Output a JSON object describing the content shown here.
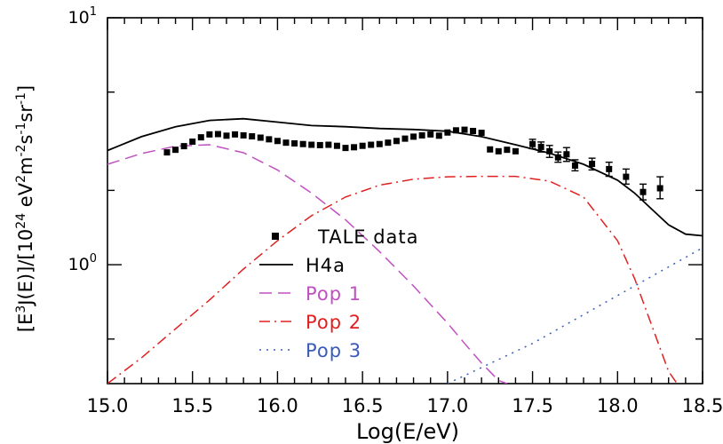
{
  "chart_data": {
    "type": "line",
    "title": "",
    "xlabel": "Log(E/eV)",
    "ylabel": "[E³J(E)]/[10²⁴ eV²m⁻²s⁻¹sr⁻¹]",
    "ylabel_parts": {
      "pre1": "[E",
      "sup1": "3",
      "mid1": "J(E)]/[10",
      "sup2": "24",
      "mid2": " eV",
      "sup3": "2",
      "mid3": "m",
      "sup4": "-2",
      "mid4": "s",
      "sup5": "-1",
      "mid5": "sr",
      "sup6": "-1",
      "post": "]"
    },
    "xlim": [
      15.0,
      18.5
    ],
    "ylim": [
      0.33,
      10
    ],
    "yscale": "log",
    "x_ticks": [
      "15.0",
      "15.5",
      "16.0",
      "16.5",
      "17.0",
      "17.5",
      "18.0",
      "18.5"
    ],
    "y_major_ticks": [
      {
        "value": 1,
        "base": "10",
        "exp": "0"
      },
      {
        "value": 10,
        "base": "10",
        "exp": "1"
      }
    ],
    "y_minor_ticks": [
      0.5,
      2,
      5
    ],
    "grid": false,
    "legend_position": "bottom-center",
    "scatter": {
      "name": "TALE data",
      "color": "#000000",
      "points": [
        {
          "x": 15.35,
          "y": 2.85
        },
        {
          "x": 15.4,
          "y": 2.92
        },
        {
          "x": 15.45,
          "y": 3.02
        },
        {
          "x": 15.5,
          "y": 3.15
        },
        {
          "x": 15.55,
          "y": 3.28
        },
        {
          "x": 15.6,
          "y": 3.37
        },
        {
          "x": 15.65,
          "y": 3.38
        },
        {
          "x": 15.7,
          "y": 3.33
        },
        {
          "x": 15.75,
          "y": 3.37
        },
        {
          "x": 15.8,
          "y": 3.34
        },
        {
          "x": 15.85,
          "y": 3.31
        },
        {
          "x": 15.9,
          "y": 3.27
        },
        {
          "x": 15.95,
          "y": 3.22
        },
        {
          "x": 16.0,
          "y": 3.17
        },
        {
          "x": 16.05,
          "y": 3.12
        },
        {
          "x": 16.1,
          "y": 3.1
        },
        {
          "x": 16.15,
          "y": 3.08
        },
        {
          "x": 16.2,
          "y": 3.06
        },
        {
          "x": 16.25,
          "y": 3.05
        },
        {
          "x": 16.3,
          "y": 3.06
        },
        {
          "x": 16.35,
          "y": 3.03
        },
        {
          "x": 16.4,
          "y": 2.97
        },
        {
          "x": 16.45,
          "y": 2.99
        },
        {
          "x": 16.5,
          "y": 3.03
        },
        {
          "x": 16.55,
          "y": 3.06
        },
        {
          "x": 16.6,
          "y": 3.08
        },
        {
          "x": 16.65,
          "y": 3.12
        },
        {
          "x": 16.7,
          "y": 3.17
        },
        {
          "x": 16.75,
          "y": 3.24
        },
        {
          "x": 16.8,
          "y": 3.3
        },
        {
          "x": 16.85,
          "y": 3.34
        },
        {
          "x": 16.9,
          "y": 3.37
        },
        {
          "x": 16.95,
          "y": 3.33
        },
        {
          "x": 17.0,
          "y": 3.43
        },
        {
          "x": 17.05,
          "y": 3.5
        },
        {
          "x": 17.1,
          "y": 3.52
        },
        {
          "x": 17.15,
          "y": 3.48
        },
        {
          "x": 17.2,
          "y": 3.42
        },
        {
          "x": 17.25,
          "y": 2.93
        },
        {
          "x": 17.3,
          "y": 2.88
        },
        {
          "x": 17.35,
          "y": 2.92
        },
        {
          "x": 17.4,
          "y": 2.88
        },
        {
          "x": 17.5,
          "y": 3.08
        },
        {
          "x": 17.55,
          "y": 3.0
        },
        {
          "x": 17.6,
          "y": 2.88
        },
        {
          "x": 17.65,
          "y": 2.72
        },
        {
          "x": 17.7,
          "y": 2.8
        },
        {
          "x": 17.75,
          "y": 2.52
        },
        {
          "x": 17.85,
          "y": 2.56
        },
        {
          "x": 17.95,
          "y": 2.44
        },
        {
          "x": 18.05,
          "y": 2.27
        },
        {
          "x": 18.15,
          "y": 1.97
        },
        {
          "x": 18.25,
          "y": 2.04
        }
      ],
      "errors": [
        {
          "x": 17.5,
          "lo": 2.95,
          "hi": 3.22
        },
        {
          "x": 17.55,
          "lo": 2.86,
          "hi": 3.14
        },
        {
          "x": 17.6,
          "lo": 2.72,
          "hi": 3.04
        },
        {
          "x": 17.65,
          "lo": 2.6,
          "hi": 2.86
        },
        {
          "x": 17.7,
          "lo": 2.62,
          "hi": 2.98
        },
        {
          "x": 17.75,
          "lo": 2.4,
          "hi": 2.66
        },
        {
          "x": 17.85,
          "lo": 2.42,
          "hi": 2.7
        },
        {
          "x": 17.95,
          "lo": 2.28,
          "hi": 2.6
        },
        {
          "x": 18.05,
          "lo": 2.12,
          "hi": 2.44
        },
        {
          "x": 18.15,
          "lo": 1.83,
          "hi": 2.12
        },
        {
          "x": 18.25,
          "lo": 1.85,
          "hi": 2.27
        }
      ]
    },
    "series": [
      {
        "name": "H4a",
        "color": "#000000",
        "dash": "",
        "x": [
          15.0,
          15.2,
          15.4,
          15.6,
          15.8,
          16.0,
          16.2,
          16.4,
          16.6,
          16.8,
          17.0,
          17.2,
          17.4,
          17.6,
          17.8,
          18.0,
          18.1,
          18.2,
          18.3,
          18.4,
          18.5
        ],
        "y": [
          2.9,
          3.3,
          3.62,
          3.84,
          3.9,
          3.78,
          3.66,
          3.62,
          3.56,
          3.53,
          3.47,
          3.3,
          3.06,
          2.83,
          2.55,
          2.2,
          1.95,
          1.68,
          1.45,
          1.33,
          1.31
        ]
      },
      {
        "name": "Pop 1",
        "color": "#c050c0",
        "dash": "14,7",
        "x": [
          15.0,
          15.2,
          15.4,
          15.6,
          15.8,
          16.0,
          16.2,
          16.4,
          16.6,
          16.8,
          17.0,
          17.1,
          17.2,
          17.3,
          17.35
        ],
        "y": [
          2.55,
          2.82,
          3.02,
          3.06,
          2.84,
          2.42,
          1.95,
          1.52,
          1.13,
          0.82,
          0.58,
          0.48,
          0.4,
          0.34,
          0.33
        ]
      },
      {
        "name": "Pop 2",
        "color": "#e02020",
        "dash": "12,5,2,5",
        "x": [
          15.0,
          15.2,
          15.4,
          15.6,
          15.8,
          16.0,
          16.2,
          16.4,
          16.6,
          16.8,
          17.0,
          17.2,
          17.4,
          17.6,
          17.8,
          18.0,
          18.1,
          18.2,
          18.3,
          18.35
        ],
        "y": [
          0.33,
          0.42,
          0.55,
          0.72,
          0.96,
          1.25,
          1.58,
          1.88,
          2.1,
          2.22,
          2.27,
          2.28,
          2.28,
          2.18,
          1.88,
          1.25,
          0.88,
          0.57,
          0.37,
          0.33
        ]
      },
      {
        "name": "Pop 3",
        "color": "#3a5bb8",
        "dash": "2,6",
        "x": [
          17.0,
          17.5,
          18.0,
          18.5
        ],
        "y": [
          0.33,
          0.48,
          0.75,
          1.17
        ]
      }
    ]
  }
}
